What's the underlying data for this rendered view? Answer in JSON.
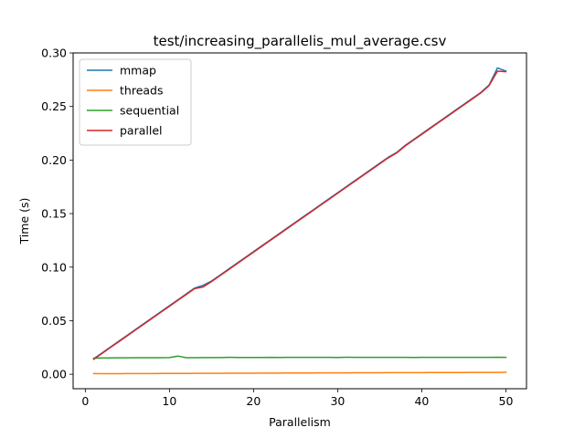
{
  "chart_data": {
    "type": "line",
    "title": "test/increasing_parallelis_mul_average.csv",
    "xlabel": "Parallelism",
    "ylabel": "Time (s)",
    "xlim": [
      -1.45,
      52.45
    ],
    "ylim": [
      -0.0135,
      0.3
    ],
    "xticks": [
      0,
      10,
      20,
      30,
      40,
      50
    ],
    "xtick_labels": [
      "0",
      "10",
      "20",
      "30",
      "40",
      "50"
    ],
    "yticks": [
      0.0,
      0.05,
      0.1,
      0.15,
      0.2,
      0.25,
      0.3
    ],
    "ytick_labels": [
      "0.00",
      "0.05",
      "0.10",
      "0.15",
      "0.20",
      "0.25",
      "0.30"
    ],
    "grid": false,
    "legend_position": "top-left",
    "x": [
      1,
      2,
      3,
      4,
      5,
      6,
      7,
      8,
      9,
      10,
      11,
      12,
      13,
      14,
      15,
      16,
      17,
      18,
      19,
      20,
      21,
      22,
      23,
      24,
      25,
      26,
      27,
      28,
      29,
      30,
      31,
      32,
      33,
      34,
      35,
      36,
      37,
      38,
      39,
      40,
      41,
      42,
      43,
      44,
      45,
      46,
      47,
      48,
      49,
      50
    ],
    "series": [
      {
        "name": "mmap",
        "color": "#1f77b4",
        "values": [
          0.0145,
          0.02,
          0.0255,
          0.031,
          0.0365,
          0.042,
          0.0475,
          0.053,
          0.0585,
          0.064,
          0.0695,
          0.075,
          0.0805,
          0.083,
          0.087,
          0.0925,
          0.098,
          0.1035,
          0.109,
          0.1145,
          0.12,
          0.1255,
          0.131,
          0.1365,
          0.142,
          0.1475,
          0.153,
          0.1585,
          0.164,
          0.1695,
          0.175,
          0.1805,
          0.186,
          0.1915,
          0.197,
          0.2025,
          0.207,
          0.2135,
          0.219,
          0.2245,
          0.23,
          0.2355,
          0.241,
          0.2465,
          0.252,
          0.2575,
          0.263,
          0.27,
          0.286,
          0.283
        ]
      },
      {
        "name": "threads",
        "color": "#ff7f0e",
        "values": [
          0.0007,
          0.0006,
          0.0006,
          0.0006,
          0.0007,
          0.0007,
          0.0007,
          0.0007,
          0.0008,
          0.0008,
          0.0008,
          0.0008,
          0.0009,
          0.0009,
          0.0009,
          0.0009,
          0.001,
          0.001,
          0.001,
          0.001,
          0.0011,
          0.0011,
          0.0011,
          0.0012,
          0.0012,
          0.0012,
          0.0012,
          0.0013,
          0.0013,
          0.0013,
          0.0013,
          0.0014,
          0.0014,
          0.0014,
          0.0014,
          0.0015,
          0.0015,
          0.0015,
          0.0015,
          0.0015,
          0.0016,
          0.0016,
          0.0016,
          0.0016,
          0.0016,
          0.0017,
          0.0017,
          0.0017,
          0.0017,
          0.0018
        ]
      },
      {
        "name": "sequential",
        "color": "#2ca02c",
        "values": [
          0.015,
          0.0152,
          0.0153,
          0.0154,
          0.0154,
          0.0155,
          0.0155,
          0.0155,
          0.0155,
          0.0156,
          0.017,
          0.0155,
          0.0155,
          0.0156,
          0.0156,
          0.0156,
          0.0158,
          0.0157,
          0.0157,
          0.0157,
          0.0157,
          0.0158,
          0.0157,
          0.0158,
          0.0158,
          0.0158,
          0.0158,
          0.0158,
          0.0158,
          0.0157,
          0.0159,
          0.0158,
          0.0158,
          0.0158,
          0.0158,
          0.0158,
          0.0158,
          0.0158,
          0.0157,
          0.0158,
          0.0158,
          0.0158,
          0.0158,
          0.0158,
          0.0158,
          0.0158,
          0.0158,
          0.0158,
          0.0159,
          0.0158
        ]
      },
      {
        "name": "parallel",
        "color": "#d62728",
        "values": [
          0.014,
          0.0195,
          0.025,
          0.0305,
          0.036,
          0.0415,
          0.047,
          0.0525,
          0.058,
          0.0635,
          0.069,
          0.0745,
          0.08,
          0.0815,
          0.0865,
          0.092,
          0.0975,
          0.103,
          0.1085,
          0.114,
          0.1195,
          0.125,
          0.1305,
          0.136,
          0.1415,
          0.147,
          0.1525,
          0.158,
          0.1635,
          0.169,
          0.1745,
          0.18,
          0.1855,
          0.191,
          0.1965,
          0.202,
          0.2065,
          0.213,
          0.2185,
          0.224,
          0.2295,
          0.235,
          0.2405,
          0.246,
          0.2515,
          0.257,
          0.2625,
          0.2695,
          0.283,
          0.2825
        ]
      }
    ]
  }
}
